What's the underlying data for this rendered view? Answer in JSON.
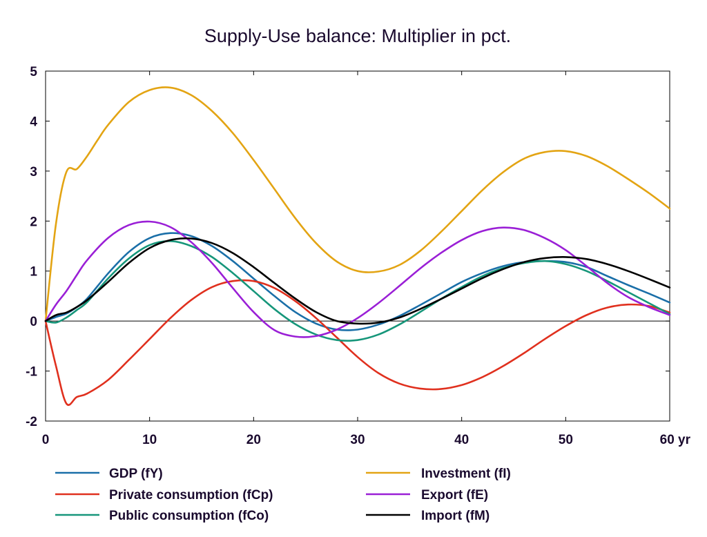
{
  "chart_data": {
    "type": "line",
    "title": "Supply-Use balance: Multiplier in pct.",
    "x_unit_label": "yr",
    "xlim": [
      0,
      60
    ],
    "ylim": [
      -2,
      5
    ],
    "x_ticks": [
      0,
      10,
      20,
      30,
      40,
      50,
      60
    ],
    "x_tick_labels": [
      "0",
      "10",
      "20",
      "30",
      "40",
      "50",
      "60 yr"
    ],
    "y_ticks": [
      -2,
      -1,
      0,
      1,
      2,
      3,
      4,
      5
    ],
    "y_tick_labels": [
      "-2",
      "-1",
      "0",
      "1",
      "2",
      "3",
      "4",
      "5"
    ],
    "grid": false,
    "zero_line": true,
    "legend_position": "bottom",
    "series": [
      {
        "name": "GDP (fY)",
        "color": "#1a6fa8",
        "x": [
          0,
          1,
          2,
          3,
          4,
          6,
          8,
          10,
          12,
          14,
          16,
          18,
          20,
          22,
          24,
          26,
          28,
          30,
          32,
          34,
          36,
          38,
          40,
          42,
          44,
          46,
          48,
          50,
          52,
          54,
          56,
          58,
          60
        ],
        "y": [
          0,
          0.08,
          0.15,
          0.28,
          0.45,
          0.95,
          1.38,
          1.66,
          1.76,
          1.7,
          1.5,
          1.2,
          0.85,
          0.5,
          0.18,
          -0.05,
          -0.17,
          -0.17,
          -0.07,
          0.1,
          0.32,
          0.55,
          0.78,
          0.96,
          1.1,
          1.18,
          1.2,
          1.18,
          1.08,
          0.9,
          0.72,
          0.55,
          0.37
        ]
      },
      {
        "name": "Private consumption (fCp)",
        "color": "#e0301e",
        "x": [
          0,
          1,
          2,
          3,
          4,
          6,
          8,
          10,
          12,
          14,
          16,
          18,
          20,
          22,
          24,
          26,
          28,
          30,
          32,
          34,
          36,
          38,
          40,
          42,
          44,
          46,
          48,
          50,
          52,
          54,
          56,
          58,
          60
        ],
        "y": [
          0,
          -0.9,
          -1.65,
          -1.52,
          -1.45,
          -1.18,
          -0.78,
          -0.36,
          0.06,
          0.42,
          0.68,
          0.8,
          0.8,
          0.66,
          0.4,
          0.06,
          -0.33,
          -0.72,
          -1.04,
          -1.25,
          -1.35,
          -1.36,
          -1.28,
          -1.12,
          -0.9,
          -0.64,
          -0.36,
          -0.1,
          0.12,
          0.27,
          0.33,
          0.3,
          0.17
        ]
      },
      {
        "name": "Public consumption (fCo)",
        "color": "#16967a",
        "x": [
          0,
          1,
          2,
          3,
          4,
          6,
          8,
          10,
          12,
          14,
          16,
          18,
          20,
          22,
          24,
          26,
          28,
          30,
          32,
          34,
          36,
          38,
          40,
          42,
          44,
          46,
          48,
          50,
          52,
          54,
          56,
          58,
          60
        ],
        "y": [
          0,
          -0.03,
          0.07,
          0.22,
          0.38,
          0.85,
          1.25,
          1.52,
          1.6,
          1.5,
          1.28,
          0.96,
          0.6,
          0.24,
          -0.06,
          -0.27,
          -0.38,
          -0.38,
          -0.27,
          -0.07,
          0.18,
          0.44,
          0.68,
          0.9,
          1.06,
          1.16,
          1.2,
          1.14,
          1.0,
          0.8,
          0.58,
          0.36,
          0.14
        ]
      },
      {
        "name": "Investment (fI)",
        "color": "#e3a413",
        "x": [
          0,
          1,
          2,
          3,
          4,
          5,
          6,
          8,
          10,
          12,
          14,
          16,
          18,
          20,
          22,
          24,
          26,
          28,
          30,
          32,
          34,
          36,
          38,
          40,
          42,
          44,
          46,
          48,
          50,
          52,
          54,
          56,
          58,
          60
        ],
        "y": [
          0,
          1.95,
          2.98,
          3.04,
          3.3,
          3.62,
          3.92,
          4.38,
          4.62,
          4.67,
          4.52,
          4.2,
          3.76,
          3.22,
          2.64,
          2.06,
          1.56,
          1.19,
          1.0,
          0.99,
          1.12,
          1.4,
          1.78,
          2.2,
          2.62,
          2.98,
          3.25,
          3.38,
          3.4,
          3.3,
          3.1,
          2.84,
          2.56,
          2.25
        ]
      },
      {
        "name": "Export (fE)",
        "color": "#9a1fd6",
        "x": [
          0,
          1,
          2,
          3,
          4,
          6,
          8,
          10,
          12,
          14,
          16,
          18,
          20,
          22,
          24,
          26,
          28,
          30,
          32,
          34,
          36,
          38,
          40,
          42,
          44,
          46,
          48,
          50,
          52,
          54,
          56,
          58,
          60
        ],
        "y": [
          0,
          0.33,
          0.6,
          0.92,
          1.22,
          1.66,
          1.92,
          1.99,
          1.88,
          1.58,
          1.16,
          0.66,
          0.18,
          -0.18,
          -0.31,
          -0.3,
          -0.17,
          0.06,
          0.36,
          0.7,
          1.05,
          1.36,
          1.62,
          1.8,
          1.87,
          1.82,
          1.66,
          1.42,
          1.1,
          0.76,
          0.48,
          0.28,
          0.12
        ]
      },
      {
        "name": "Import (fM)",
        "color": "#000000",
        "x": [
          0,
          1,
          2,
          3,
          4,
          6,
          8,
          10,
          12,
          14,
          16,
          18,
          20,
          22,
          24,
          26,
          28,
          30,
          32,
          34,
          36,
          38,
          40,
          42,
          44,
          46,
          48,
          50,
          52,
          54,
          56,
          58,
          60
        ],
        "y": [
          0,
          0.12,
          0.17,
          0.28,
          0.42,
          0.78,
          1.16,
          1.46,
          1.62,
          1.65,
          1.56,
          1.36,
          1.08,
          0.76,
          0.45,
          0.18,
          0.0,
          -0.05,
          -0.03,
          0.07,
          0.24,
          0.44,
          0.65,
          0.86,
          1.04,
          1.18,
          1.26,
          1.28,
          1.24,
          1.14,
          1.0,
          0.84,
          0.67
        ]
      }
    ],
    "legend_order": [
      0,
      3,
      1,
      4,
      2,
      5
    ]
  }
}
